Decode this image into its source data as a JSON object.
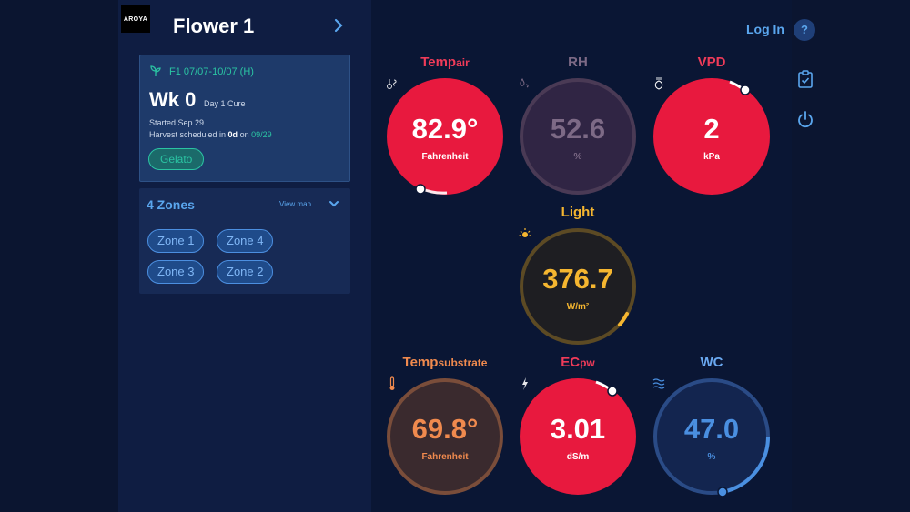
{
  "header": {
    "logo_text": "AROYA",
    "title": "Flower 1"
  },
  "card": {
    "crop_name": "F1 07/07-10/07 (H)",
    "week": "Wk 0",
    "day_phase": "Day 1  Cure",
    "started": "Started Sep 29",
    "harvest_prefix": "Harvest scheduled in ",
    "harvest_days": "0d",
    "harvest_on": " on ",
    "harvest_date": "09/29",
    "strain": "Gelato"
  },
  "zones": {
    "title": "4 Zones",
    "view_map": "View map",
    "items": [
      "Zone 1",
      "Zone 4",
      "Zone 3",
      "Zone 2"
    ]
  },
  "topbar": {
    "login": "Log In",
    "help": "?"
  },
  "gauges": {
    "temp_air": {
      "label_main": "Temp",
      "label_sub": "air",
      "value": "82.9°",
      "unit": "Fahrenheit",
      "color": "#e8193e",
      "label_color": "#ef3b59",
      "icon": "thermometer-fan-icon"
    },
    "rh": {
      "label": "RH",
      "value": "52.6",
      "unit": "%",
      "color": "#4a3a55",
      "label_color": "#7d6a86",
      "icon": "humidity-icon"
    },
    "vpd": {
      "label": "VPD",
      "value": "2",
      "unit": "kPa",
      "color": "#e8193e",
      "label_color": "#ef3b59",
      "icon": "leaf-vapor-icon"
    },
    "light": {
      "label": "Light",
      "value": "376.7",
      "unit": "W/m²",
      "color": "#f5b630",
      "icon": "sun-icon"
    },
    "temp_substrate": {
      "label_main": "Temp",
      "label_sub": "substrate",
      "value": "69.8°",
      "unit": "Fahrenheit",
      "color": "#f08a4e",
      "icon": "thermometer-icon"
    },
    "ec": {
      "label_main": "EC",
      "label_sub": "pw",
      "value": "3.01",
      "unit": "dS/m",
      "color": "#e8193e",
      "label_color": "#ef3b59",
      "icon": "lightning-drop-icon"
    },
    "wc": {
      "label": "WC",
      "value": "47.0",
      "unit": "%",
      "color": "#4a8fe0",
      "label_color": "#6aa8f0",
      "icon": "water-waves-icon"
    }
  }
}
